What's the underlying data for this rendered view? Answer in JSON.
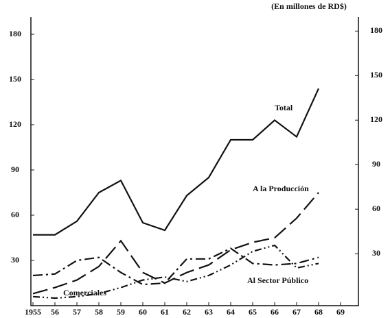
{
  "chart_data": {
    "type": "line",
    "subtitle": "(En millones de RD$)",
    "x": [
      1955,
      1956,
      1957,
      1958,
      1959,
      1960,
      1961,
      1962,
      1963,
      1964,
      1965,
      1966,
      1967,
      1968
    ],
    "xlim": [
      1955,
      1969
    ],
    "xticks": [
      {
        "value": 1955,
        "label": "1955"
      },
      {
        "value": 1956,
        "label": "56"
      },
      {
        "value": 1957,
        "label": "57"
      },
      {
        "value": 1958,
        "label": "58"
      },
      {
        "value": 1959,
        "label": "59"
      },
      {
        "value": 1960,
        "label": "60"
      },
      {
        "value": 1961,
        "label": "61"
      },
      {
        "value": 1962,
        "label": "62"
      },
      {
        "value": 1963,
        "label": "63"
      },
      {
        "value": 1964,
        "label": "64"
      },
      {
        "value": 1965,
        "label": "65"
      },
      {
        "value": 1966,
        "label": "66"
      },
      {
        "value": 1967,
        "label": "67"
      },
      {
        "value": 1968,
        "label": "68"
      },
      {
        "value": 1969,
        "label": "69"
      }
    ],
    "ylim": [
      0,
      190
    ],
    "yticks": [
      30,
      60,
      90,
      120,
      150,
      180
    ],
    "y2lim": [
      -5,
      188
    ],
    "y2ticks": [
      30,
      60,
      90,
      120,
      150,
      180
    ],
    "series": [
      {
        "name": "Total",
        "color": "#111111",
        "dash": "",
        "values": [
          47,
          47,
          56,
          75,
          83,
          55,
          50,
          73,
          85,
          110,
          110,
          123,
          112,
          144
        ]
      },
      {
        "name": "A la Producción",
        "color": "#111111",
        "dash": "22 8",
        "values": [
          8,
          12,
          17,
          26,
          43,
          22,
          15,
          22,
          27,
          37,
          42,
          45,
          58,
          75
        ]
      },
      {
        "name": "Al Sector Público",
        "color": "#111111",
        "dash": "14 5 3 5",
        "values": [
          20,
          21,
          30,
          32,
          22,
          14,
          15,
          31,
          31,
          38,
          28,
          27,
          28,
          32
        ]
      },
      {
        "name": "Comerciales",
        "color": "#111111",
        "dash": "10 4 2 4 2 4",
        "values": [
          6,
          5,
          6,
          8,
          12,
          17,
          19,
          16,
          20,
          27,
          36,
          40,
          25,
          28
        ]
      }
    ]
  }
}
